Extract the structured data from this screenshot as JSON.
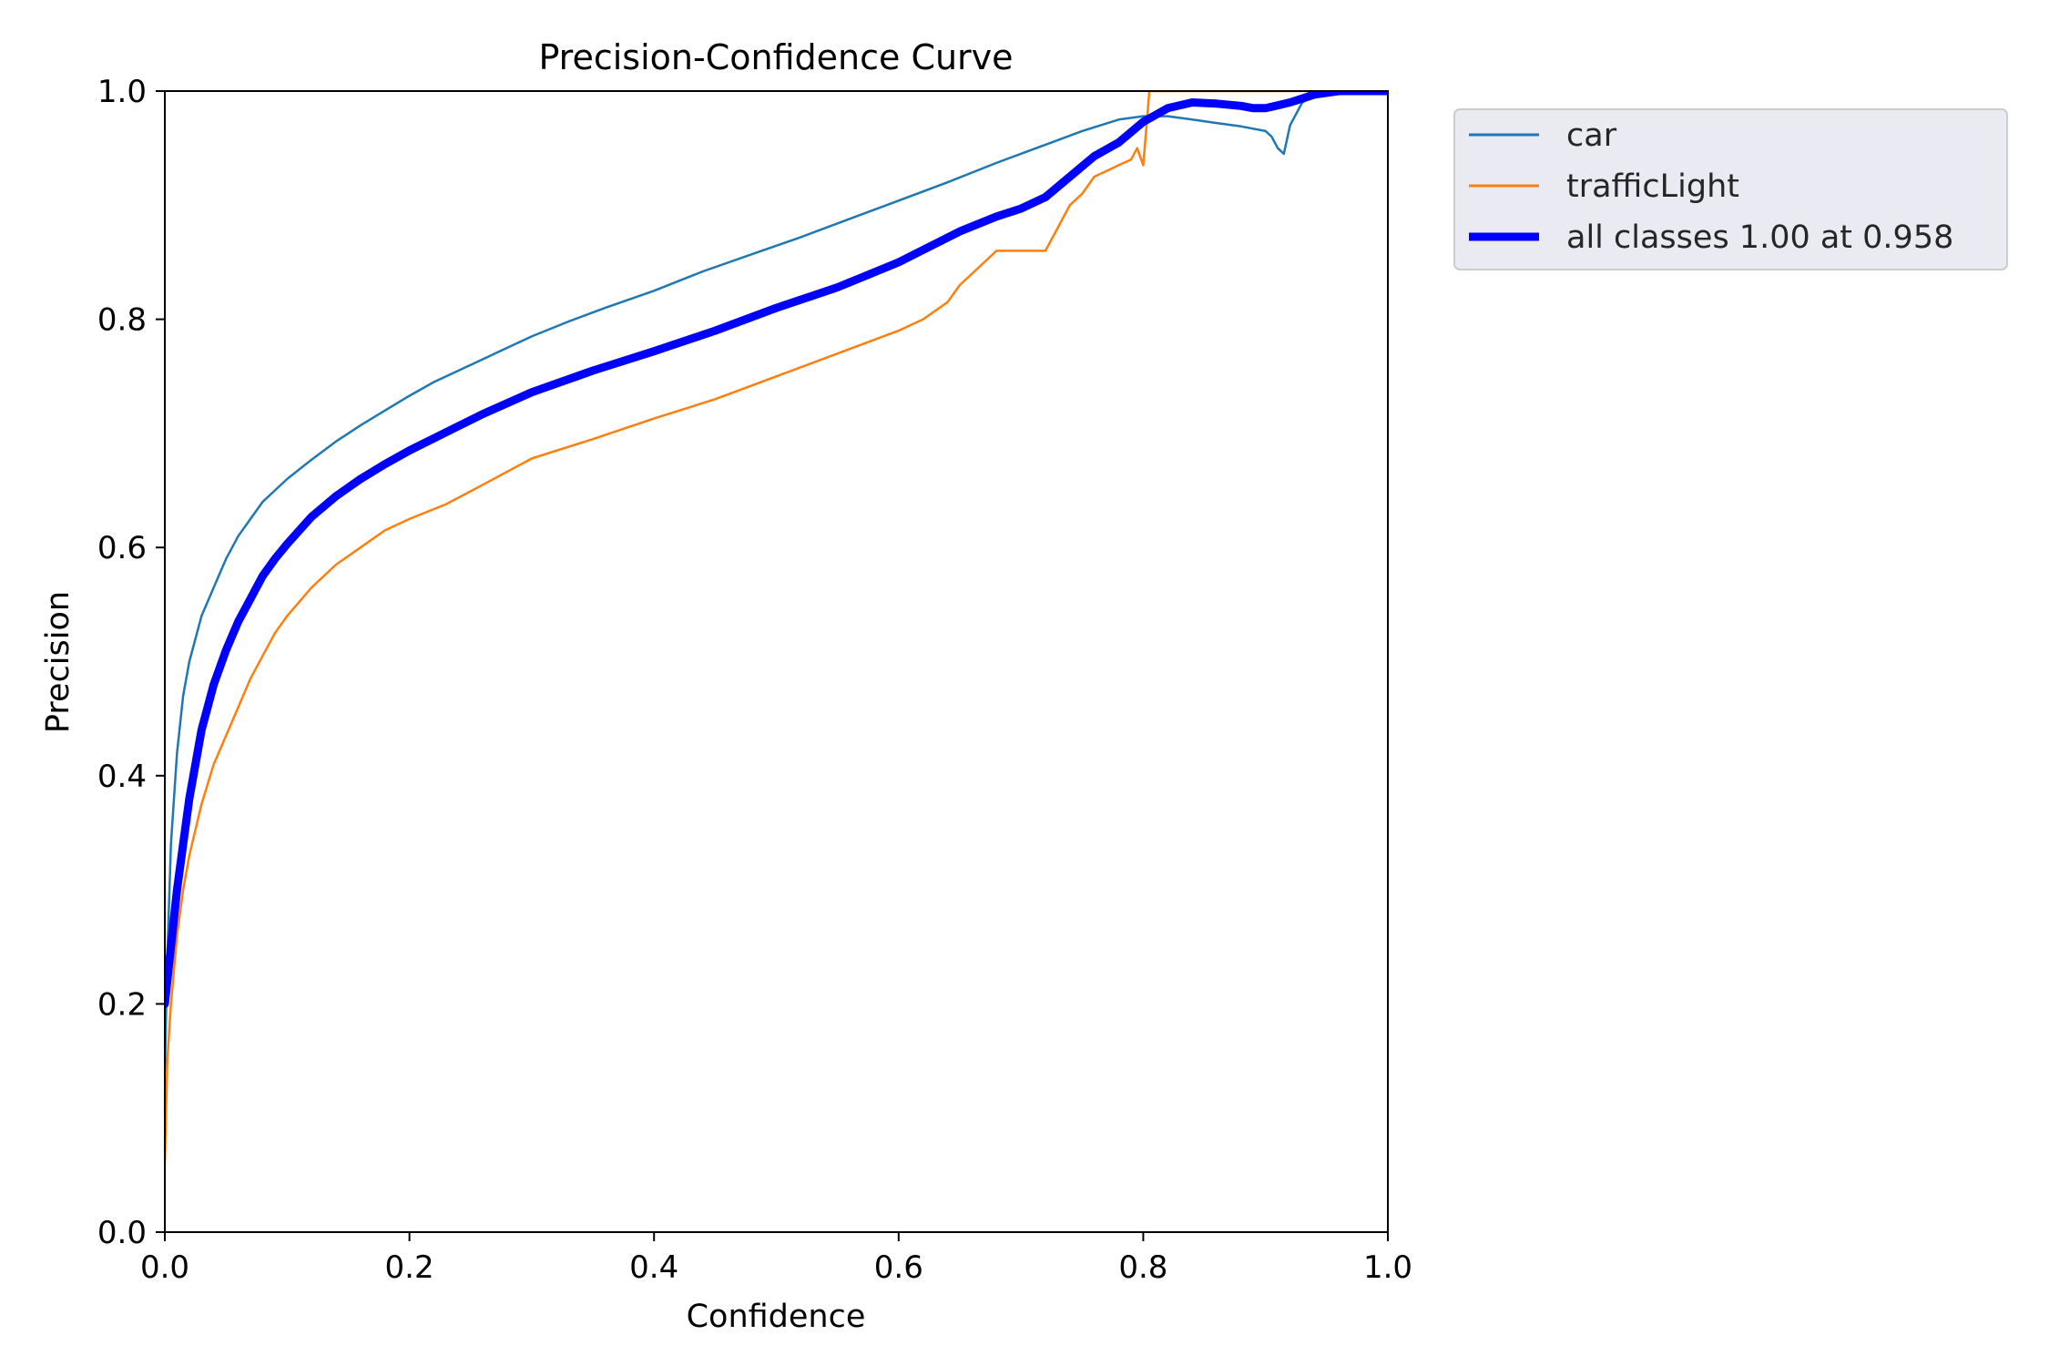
{
  "chart_data": {
    "type": "line",
    "title": "Precision-Confidence Curve",
    "xlabel": "Confidence",
    "ylabel": "Precision",
    "xlim": [
      0,
      1
    ],
    "ylim": [
      0,
      1
    ],
    "xticks": [
      "0.0",
      "0.2",
      "0.4",
      "0.6",
      "0.8",
      "1.0"
    ],
    "yticks": [
      "0.0",
      "0.2",
      "0.4",
      "0.6",
      "0.8",
      "1.0"
    ],
    "grid": false,
    "legend_position": "outside-top-right",
    "series": [
      {
        "name": "car",
        "color": "#1f77b4",
        "line_width": "thin",
        "x": [
          0.0,
          0.002,
          0.005,
          0.01,
          0.015,
          0.02,
          0.03,
          0.04,
          0.05,
          0.06,
          0.07,
          0.08,
          0.09,
          0.1,
          0.12,
          0.14,
          0.16,
          0.18,
          0.2,
          0.22,
          0.25,
          0.28,
          0.3,
          0.33,
          0.36,
          0.4,
          0.44,
          0.48,
          0.52,
          0.56,
          0.6,
          0.64,
          0.68,
          0.72,
          0.75,
          0.78,
          0.8,
          0.82,
          0.84,
          0.86,
          0.88,
          0.9,
          0.905,
          0.91,
          0.915,
          0.92,
          0.925,
          0.93,
          0.94,
          0.95,
          0.96,
          0.98,
          1.0
        ],
        "y": [
          0.14,
          0.24,
          0.34,
          0.42,
          0.47,
          0.5,
          0.54,
          0.565,
          0.59,
          0.61,
          0.625,
          0.64,
          0.65,
          0.66,
          0.677,
          0.693,
          0.707,
          0.72,
          0.733,
          0.745,
          0.76,
          0.775,
          0.785,
          0.798,
          0.81,
          0.825,
          0.842,
          0.857,
          0.872,
          0.888,
          0.904,
          0.92,
          0.937,
          0.953,
          0.965,
          0.975,
          0.978,
          0.978,
          0.975,
          0.972,
          0.969,
          0.965,
          0.96,
          0.95,
          0.945,
          0.97,
          0.98,
          0.99,
          0.996,
          0.999,
          1.0,
          1.0,
          1.0
        ]
      },
      {
        "name": "trafficLight",
        "color": "#ff7f0e",
        "line_width": "thin",
        "x": [
          0.0,
          0.002,
          0.005,
          0.01,
          0.015,
          0.02,
          0.03,
          0.04,
          0.05,
          0.06,
          0.07,
          0.08,
          0.09,
          0.1,
          0.12,
          0.14,
          0.16,
          0.18,
          0.2,
          0.23,
          0.26,
          0.3,
          0.35,
          0.4,
          0.45,
          0.5,
          0.55,
          0.6,
          0.62,
          0.64,
          0.65,
          0.66,
          0.67,
          0.68,
          0.7,
          0.72,
          0.73,
          0.74,
          0.75,
          0.76,
          0.77,
          0.78,
          0.79,
          0.795,
          0.8,
          0.805,
          0.81,
          0.815,
          0.82,
          0.83,
          0.84,
          0.86,
          0.9,
          0.95,
          1.0
        ],
        "y": [
          0.06,
          0.15,
          0.2,
          0.26,
          0.3,
          0.33,
          0.375,
          0.41,
          0.435,
          0.46,
          0.485,
          0.505,
          0.525,
          0.54,
          0.565,
          0.585,
          0.6,
          0.615,
          0.625,
          0.638,
          0.655,
          0.678,
          0.695,
          0.713,
          0.73,
          0.75,
          0.77,
          0.79,
          0.8,
          0.815,
          0.83,
          0.84,
          0.85,
          0.86,
          0.86,
          0.86,
          0.88,
          0.9,
          0.91,
          0.925,
          0.93,
          0.935,
          0.94,
          0.95,
          0.935,
          1.0,
          1.0,
          1.0,
          1.0,
          1.0,
          1.0,
          1.0,
          1.0,
          1.0,
          1.0
        ]
      },
      {
        "name": "all classes 1.00 at 0.958",
        "color": "#0000ff",
        "line_width": "thick",
        "x": [
          0.0,
          0.005,
          0.01,
          0.015,
          0.02,
          0.03,
          0.04,
          0.05,
          0.06,
          0.07,
          0.08,
          0.09,
          0.1,
          0.12,
          0.14,
          0.16,
          0.18,
          0.2,
          0.23,
          0.26,
          0.3,
          0.35,
          0.4,
          0.45,
          0.5,
          0.55,
          0.6,
          0.65,
          0.68,
          0.7,
          0.72,
          0.74,
          0.76,
          0.78,
          0.8,
          0.82,
          0.84,
          0.86,
          0.88,
          0.89,
          0.9,
          0.92,
          0.94,
          0.96,
          1.0
        ],
        "y": [
          0.2,
          0.25,
          0.3,
          0.34,
          0.38,
          0.44,
          0.48,
          0.51,
          0.535,
          0.555,
          0.575,
          0.59,
          0.603,
          0.627,
          0.645,
          0.66,
          0.673,
          0.685,
          0.701,
          0.717,
          0.736,
          0.755,
          0.772,
          0.79,
          0.81,
          0.828,
          0.85,
          0.877,
          0.89,
          0.897,
          0.907,
          0.925,
          0.943,
          0.955,
          0.973,
          0.985,
          0.99,
          0.989,
          0.987,
          0.985,
          0.985,
          0.99,
          0.997,
          1.0,
          1.0
        ]
      }
    ]
  }
}
